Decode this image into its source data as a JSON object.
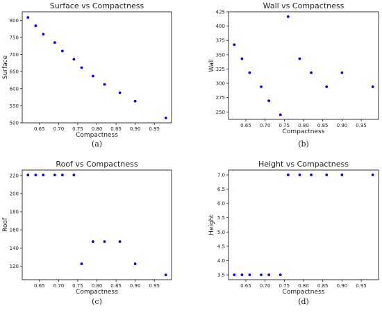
{
  "chart_data": [
    {
      "type": "scatter",
      "title": "Surface vs Compactness",
      "xlabel": "Compactness",
      "ylabel": "Surface",
      "caption": "(a)",
      "xlim": [
        0.605,
        0.995
      ],
      "ylim": [
        500,
        825
      ],
      "xticks": [
        0.65,
        0.7,
        0.75,
        0.8,
        0.85,
        0.9,
        0.95
      ],
      "xtick_labels": [
        "0.65",
        "0.70",
        "0.75",
        "0.80",
        "0.85",
        "0.90",
        "0.95"
      ],
      "yticks": [
        500,
        550,
        600,
        650,
        700,
        750,
        800
      ],
      "ytick_labels": [
        "500",
        "550",
        "600",
        "650",
        "700",
        "750",
        "800"
      ],
      "x": [
        0.62,
        0.64,
        0.66,
        0.69,
        0.71,
        0.74,
        0.76,
        0.79,
        0.82,
        0.86,
        0.9,
        0.98
      ],
      "y": [
        808.5,
        784,
        759.5,
        735,
        710.5,
        686,
        661.5,
        637,
        612.5,
        588,
        563.5,
        514.5
      ],
      "grid": false,
      "color": "#0000ff"
    },
    {
      "type": "scatter",
      "title": "Wall vs Compactness",
      "xlabel": "Compactness",
      "ylabel": "Wall",
      "caption": "(b)",
      "xlim": [
        0.605,
        0.995
      ],
      "ylim": [
        237,
        425
      ],
      "xticks": [
        0.65,
        0.7,
        0.75,
        0.8,
        0.85,
        0.9,
        0.95
      ],
      "xtick_labels": [
        "0.65",
        "0.70",
        "0.75",
        "0.80",
        "0.85",
        "0.90",
        "0.95"
      ],
      "yticks": [
        250,
        275,
        300,
        325,
        350,
        375,
        400,
        425
      ],
      "ytick_labels": [
        "250",
        "275",
        "300",
        "325",
        "350",
        "375",
        "400",
        "425"
      ],
      "x": [
        0.62,
        0.64,
        0.66,
        0.69,
        0.71,
        0.74,
        0.76,
        0.79,
        0.82,
        0.86,
        0.9,
        0.98
      ],
      "y": [
        367.5,
        343,
        318.5,
        294,
        269.5,
        245,
        416.5,
        343,
        318.5,
        294,
        318.5,
        294
      ],
      "grid": false,
      "color": "#0000ff"
    },
    {
      "type": "scatter",
      "title": "Roof vs Compactness",
      "xlabel": "Compactness",
      "ylabel": "Roof",
      "caption": "(c)",
      "xlim": [
        0.605,
        0.995
      ],
      "ylim": [
        105,
        226
      ],
      "xticks": [
        0.65,
        0.7,
        0.75,
        0.8,
        0.85,
        0.9,
        0.95
      ],
      "xtick_labels": [
        "0.65",
        "0.70",
        "0.75",
        "0.80",
        "0.85",
        "0.90",
        "0.95"
      ],
      "yticks": [
        120,
        140,
        160,
        180,
        200,
        220
      ],
      "ytick_labels": [
        "120",
        "140",
        "160",
        "180",
        "200",
        "220"
      ],
      "x": [
        0.62,
        0.64,
        0.66,
        0.69,
        0.71,
        0.74,
        0.76,
        0.79,
        0.82,
        0.86,
        0.9,
        0.98
      ],
      "y": [
        220.5,
        220.5,
        220.5,
        220.5,
        220.5,
        220.5,
        122.5,
        147,
        147,
        147,
        122.5,
        110.25
      ],
      "grid": false,
      "color": "#0000ff"
    },
    {
      "type": "scatter",
      "title": "Height vs Compactness",
      "xlabel": "Compactness",
      "ylabel": "Height",
      "caption": "(d)",
      "xlim": [
        0.605,
        0.995
      ],
      "ylim": [
        3.33,
        7.17
      ],
      "xticks": [
        0.65,
        0.7,
        0.75,
        0.8,
        0.85,
        0.9,
        0.95
      ],
      "xtick_labels": [
        "0.65",
        "0.70",
        "0.75",
        "0.80",
        "0.85",
        "0.90",
        "0.95"
      ],
      "yticks": [
        3.5,
        4.0,
        4.5,
        5.0,
        5.5,
        6.0,
        6.5,
        7.0
      ],
      "ytick_labels": [
        "3.5",
        "4.0",
        "4.5",
        "5.0",
        "5.5",
        "6.0",
        "6.5",
        "7.0"
      ],
      "x": [
        0.62,
        0.64,
        0.66,
        0.69,
        0.71,
        0.74,
        0.76,
        0.79,
        0.82,
        0.86,
        0.9,
        0.98
      ],
      "y": [
        3.5,
        3.5,
        3.5,
        3.5,
        3.5,
        3.5,
        7.0,
        7.0,
        7.0,
        7.0,
        7.0,
        7.0
      ],
      "grid": false,
      "color": "#0000ff"
    }
  ]
}
